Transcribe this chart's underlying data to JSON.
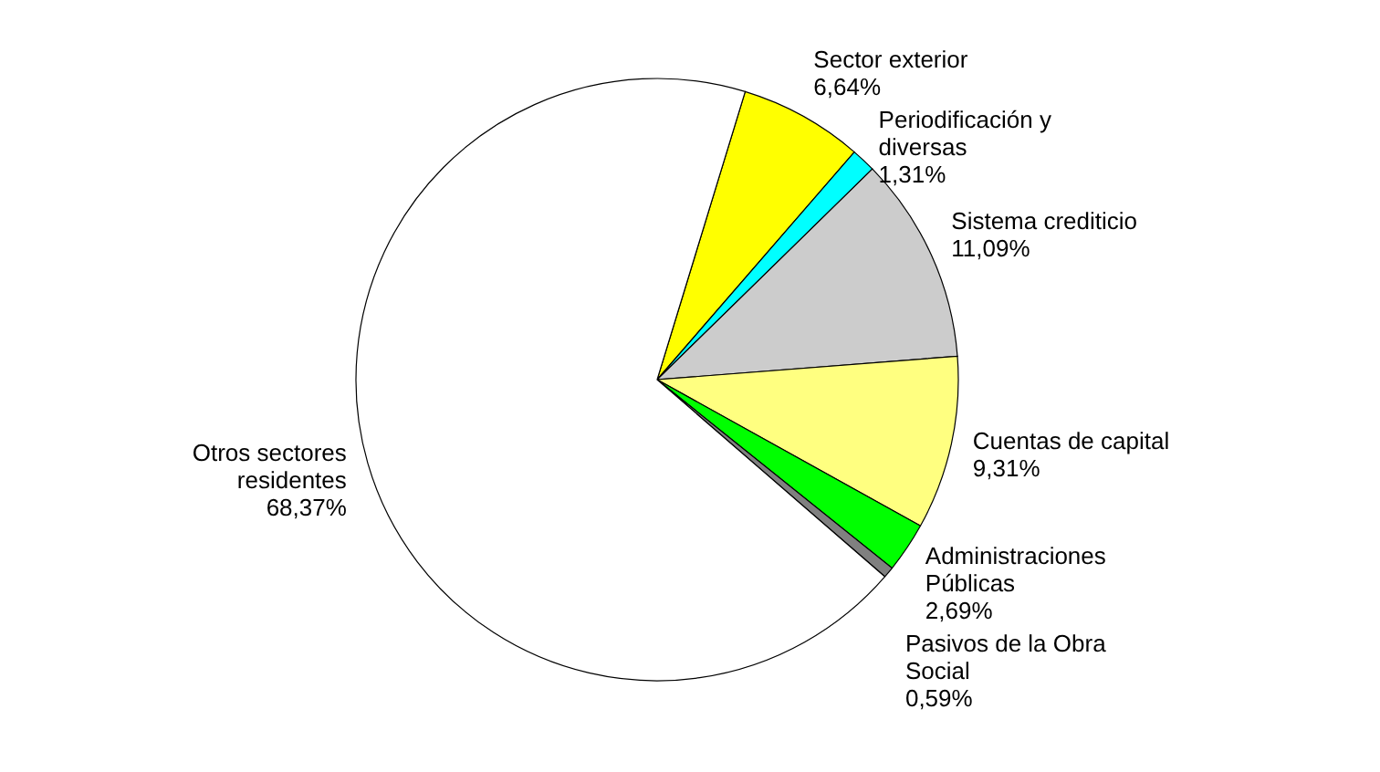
{
  "chart_data": {
    "type": "pie",
    "categories": [
      "Sector exterior",
      "Periodificación y diversas",
      "Sistema crediticio",
      "Cuentas de capital",
      "Administraciones Públicas",
      "Pasivos de la Obra Social",
      "Otros sectores residentes"
    ],
    "values": [
      6.64,
      1.31,
      11.09,
      9.31,
      2.69,
      0.59,
      68.37
    ],
    "value_labels": [
      "6,64%",
      "1,31%",
      "11,09%",
      "9,31%",
      "2,69%",
      "0,59%",
      "68,37%"
    ],
    "colors": [
      "#ffff00",
      "#00ffff",
      "#cccccc",
      "#ffff80",
      "#00ff00",
      "#808080",
      "#ffffff"
    ]
  }
}
